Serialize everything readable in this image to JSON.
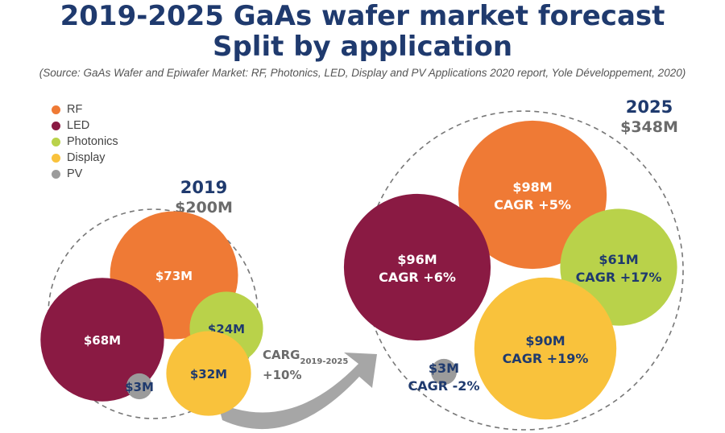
{
  "header": {
    "title_line1": "2019-2025 GaAs wafer market forecast",
    "title_line2": "Split by application",
    "source": "(Source: GaAs Wafer and Epiwafer Market: RF, Photonics, LED, Display and PV Applications 2020 report, Yole Développement, 2020)"
  },
  "legend": [
    {
      "label": "RF",
      "color": "#ef7a35"
    },
    {
      "label": "LED",
      "color": "#8a1a43"
    },
    {
      "label": "Photonics",
      "color": "#b9d24a"
    },
    {
      "label": "Display",
      "color": "#f9c23c"
    },
    {
      "label": "PV",
      "color": "#9b9b9b"
    }
  ],
  "arrow": {
    "label_main": "CARG",
    "label_sub": "2019-2025",
    "label_value": "+10%"
  },
  "chart_data": {
    "type": "bubble",
    "series_colors": {
      "RF": "#ef7a35",
      "LED": "#8a1a43",
      "Photonics": "#b9d24a",
      "Display": "#f9c23c",
      "PV": "#9b9b9b"
    },
    "text_color": "#1f3a6e",
    "total_color": "#6b6b6b",
    "groups": [
      {
        "year": "2019",
        "total": "$200M",
        "items": [
          {
            "segment": "RF",
            "value": 73,
            "label": "$73M",
            "cagr": ""
          },
          {
            "segment": "LED",
            "value": 68,
            "label": "$68M",
            "cagr": ""
          },
          {
            "segment": "Photonics",
            "value": 24,
            "label": "$24M",
            "cagr": ""
          },
          {
            "segment": "Display",
            "value": 32,
            "label": "$32M",
            "cagr": ""
          },
          {
            "segment": "PV",
            "value": 3,
            "label": "$3M",
            "cagr": ""
          }
        ]
      },
      {
        "year": "2025",
        "total": "$348M",
        "items": [
          {
            "segment": "RF",
            "value": 98,
            "label": "$98M",
            "cagr": "CAGR +5%"
          },
          {
            "segment": "LED",
            "value": 96,
            "label": "$96M",
            "cagr": "CAGR +6%"
          },
          {
            "segment": "Photonics",
            "value": 61,
            "label": "$61M",
            "cagr": "CAGR +17%"
          },
          {
            "segment": "Display",
            "value": 90,
            "label": "$90M",
            "cagr": "CAGR +19%"
          },
          {
            "segment": "PV",
            "value": 3,
            "label": "$3M",
            "cagr": "CAGR -2%"
          }
        ]
      }
    ]
  }
}
